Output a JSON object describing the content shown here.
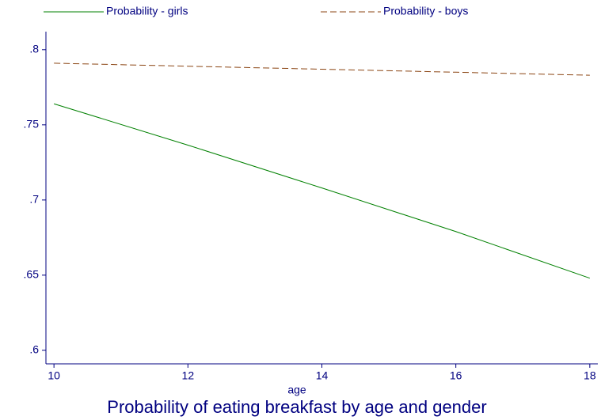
{
  "chart_data": {
    "type": "line",
    "title": "Probability of eating breakfast by age and gender",
    "x_label": "age",
    "x": [
      10,
      12,
      14,
      16,
      18
    ],
    "series": [
      {
        "name": "Probability - girls",
        "color": "#008000",
        "dash": "solid",
        "values": [
          0.764,
          0.7365,
          0.708,
          0.679,
          0.648
        ]
      },
      {
        "name": "Probability - boys",
        "color": "#8b4513",
        "dash": "dashed",
        "values": [
          0.791,
          0.789,
          0.787,
          0.785,
          0.783
        ]
      }
    ],
    "xlim": [
      9.88,
      18.12
    ],
    "xticks": [
      10,
      12,
      14,
      16,
      18
    ],
    "ylim": [
      0.591,
      0.812
    ],
    "yticks": [
      {
        "value": 0.6,
        "label": ".6"
      },
      {
        "value": 0.65,
        "label": ".65"
      },
      {
        "value": 0.7,
        "label": ".7"
      },
      {
        "value": 0.75,
        "label": ".75"
      },
      {
        "value": 0.8,
        "label": ".8"
      }
    ],
    "legend": "top"
  }
}
